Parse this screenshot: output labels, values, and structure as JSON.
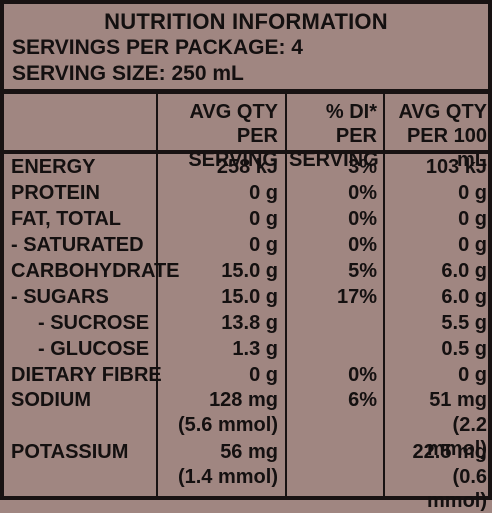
{
  "title": "NUTRITION INFORMATION",
  "servings_per_package": "SERVINGS PER PACKAGE: 4",
  "serving_size": "SERVING SIZE: 250 mL",
  "headers": {
    "per_serving": [
      "AVG QTY",
      "PER SERVING"
    ],
    "di_per": [
      "% DI* PER",
      "SERVING"
    ],
    "per_100": [
      "AVG QTY",
      "PER 100 mL"
    ]
  },
  "rows": [
    {
      "name": "ENERGY",
      "serving": "258 kJ",
      "di": "3%",
      "per100": "103 kJ"
    },
    {
      "name": "PROTEIN",
      "serving": "0 g",
      "di": "0%",
      "per100": "0 g"
    },
    {
      "name": "FAT, TOTAL",
      "serving": "0 g",
      "di": "0%",
      "per100": "0 g"
    },
    {
      "name": "- SATURATED",
      "serving": "0 g",
      "di": "0%",
      "per100": "0 g"
    },
    {
      "name": "CARBOHYDRATE",
      "serving": "15.0 g",
      "di": "5%",
      "per100": "6.0 g"
    },
    {
      "name": "- SUGARS",
      "serving": "15.0 g",
      "di": "17%",
      "per100": "6.0 g"
    },
    {
      "name": "- SUCROSE",
      "serving": "13.8 g",
      "di": "",
      "per100": "5.5 g"
    },
    {
      "name": "- GLUCOSE",
      "serving": "1.3 g",
      "di": "",
      "per100": "0.5 g"
    },
    {
      "name": "DIETARY FIBRE",
      "serving": "0 g",
      "di": "0%",
      "per100": "0 g"
    },
    {
      "name": "SODIUM",
      "serving": "128 mg",
      "di": "6%",
      "per100": "51 mg",
      "serving_sub": "(5.6 mmol)",
      "per100_sub": "(2.2 mmol)"
    },
    {
      "name": "POTASSIUM",
      "serving": "56 mg",
      "di": "",
      "per100": "22.5 mg",
      "serving_sub": "(1.4 mmol)",
      "per100_sub": "(0.6 mmol)"
    }
  ]
}
